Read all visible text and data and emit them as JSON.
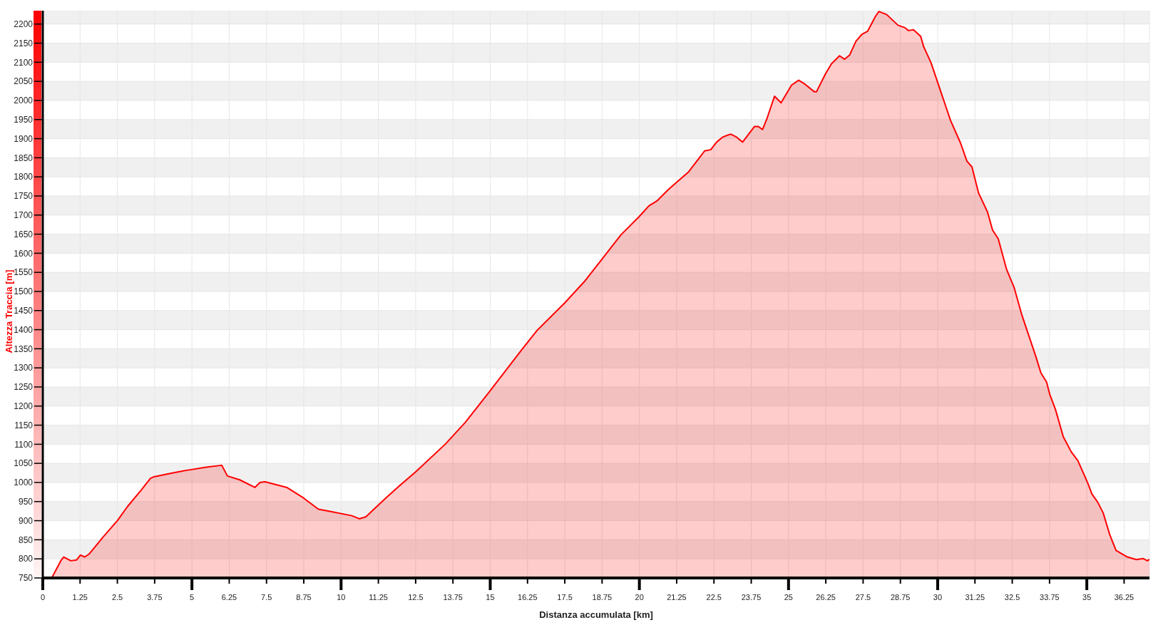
{
  "chart_data": {
    "type": "area",
    "xlabel": "Distanza accumulata [km]",
    "ylabel": "Altezza Traccia [m]",
    "color": "#ff0000",
    "grid": true,
    "xlim": [
      0,
      37.1
    ],
    "ylim": [
      750,
      2235
    ],
    "xticks": [
      0,
      1.25,
      2.5,
      3.75,
      5,
      6.25,
      7.5,
      8.75,
      10,
      11.25,
      12.5,
      13.75,
      15,
      16.25,
      17.5,
      18.75,
      20,
      21.25,
      22.5,
      23.75,
      25,
      26.25,
      27.5,
      28.75,
      30,
      31.25,
      32.5,
      33.75,
      35,
      36.25
    ],
    "yticks": [
      750,
      800,
      850,
      900,
      950,
      1000,
      1050,
      1100,
      1150,
      1200,
      1250,
      1300,
      1350,
      1400,
      1450,
      1500,
      1550,
      1600,
      1650,
      1700,
      1750,
      1800,
      1850,
      1900,
      1950,
      2000,
      2050,
      2100,
      2150,
      2200
    ],
    "x": [
      0,
      0.3,
      0.62,
      0.7,
      0.94,
      1.13,
      1.26,
      1.41,
      1.56,
      2.02,
      2.5,
      2.84,
      3.31,
      3.61,
      3.73,
      4.37,
      4.76,
      5.49,
      6,
      6.19,
      6.6,
      7.11,
      7.28,
      7.45,
      8.18,
      8.73,
      9.24,
      9.59,
      10.36,
      10.61,
      10.83,
      11.47,
      11.94,
      12.49,
      13.49,
      14.16,
      14.96,
      16.04,
      16.57,
      17.51,
      18.18,
      18.71,
      19.38,
      19.98,
      20.32,
      20.59,
      20.99,
      21.25,
      21.65,
      22.19,
      22.39,
      22.59,
      22.79,
      23.06,
      23.26,
      23.46,
      23.86,
      23.98,
      24.13,
      24.27,
      24.53,
      24.75,
      25.1,
      25.34,
      25.51,
      25.86,
      25.94,
      26.24,
      26.44,
      26.71,
      26.88,
      27.05,
      27.26,
      27.46,
      27.65,
      27.92,
      28.03,
      28.29,
      28.67,
      28.89,
      29.02,
      29.19,
      29.43,
      29.53,
      29.78,
      30.04,
      30.3,
      30.43,
      30.77,
      30.98,
      31.15,
      31.37,
      31.67,
      31.84,
      32.03,
      32.31,
      32.56,
      32.82,
      33.29,
      33.46,
      33.65,
      33.76,
      33.95,
      34.21,
      34.48,
      34.7,
      35.04,
      35.17,
      35.36,
      35.55,
      35.77,
      35.98,
      36.36,
      36.66,
      36.88,
      37.03,
      37.1
    ],
    "values": [
      751,
      750,
      797,
      805,
      795,
      797,
      810,
      805,
      813,
      857,
      900,
      937,
      981,
      1011,
      1015,
      1025,
      1031,
      1040,
      1045,
      1017,
      1007,
      987,
      1000,
      1002,
      987,
      960,
      930,
      925,
      913,
      905,
      910,
      957,
      990,
      1027,
      1100,
      1157,
      1236,
      1346,
      1398,
      1471,
      1528,
      1581,
      1648,
      1695,
      1724,
      1737,
      1768,
      1786,
      1813,
      1868,
      1871,
      1891,
      1904,
      1912,
      1904,
      1891,
      1932,
      1932,
      1924,
      1951,
      2011,
      1994,
      2040,
      2053,
      2045,
      2023,
      2023,
      2070,
      2096,
      2117,
      2108,
      2119,
      2155,
      2173,
      2181,
      2221,
      2233,
      2225,
      2197,
      2191,
      2183,
      2185,
      2168,
      2141,
      2098,
      2038,
      1978,
      1948,
      1888,
      1841,
      1826,
      1758,
      1708,
      1661,
      1638,
      1558,
      1511,
      1439,
      1330,
      1287,
      1263,
      1230,
      1191,
      1120,
      1080,
      1057,
      997,
      970,
      949,
      920,
      863,
      822,
      805,
      798,
      801,
      795,
      799
    ]
  }
}
